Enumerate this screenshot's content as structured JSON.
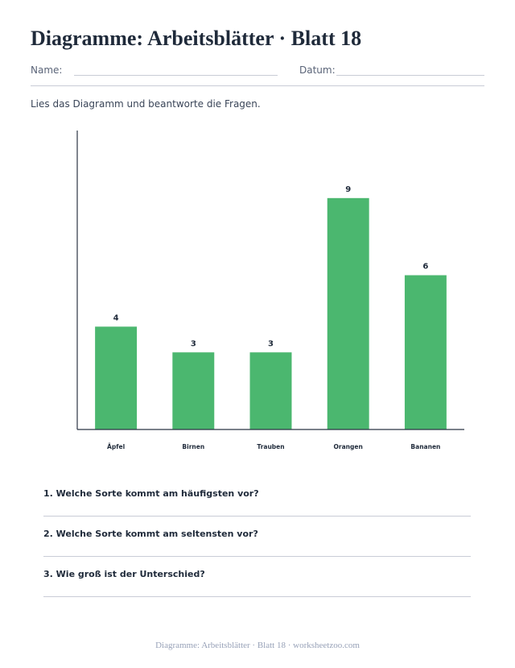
{
  "worksheet": {
    "title": "Diagramme: Arbeitsblätter · Blatt 18",
    "name_label": "Name:",
    "date_label": "Datum:",
    "instruction": "Lies das Diagramm und beantworte die Fragen."
  },
  "chart_data": {
    "type": "bar",
    "categories": [
      "Äpfel",
      "Birnen",
      "Trauben",
      "Orangen",
      "Bananen"
    ],
    "values": [
      4,
      3,
      3,
      9,
      6
    ],
    "title": "",
    "xlabel": "",
    "ylabel": "",
    "ylim": [
      0,
      11
    ],
    "grid": false,
    "bar_color": "#4bb76f",
    "data_labels": true
  },
  "questions": [
    "1. Welche Sorte kommt am häufigsten vor?",
    "2. Welche Sorte kommt am seltensten vor?",
    "3. Wie groß ist der Unterschied?"
  ],
  "footer": "Diagramme: Arbeitsblätter · Blatt 18 · worksheetzoo.com"
}
